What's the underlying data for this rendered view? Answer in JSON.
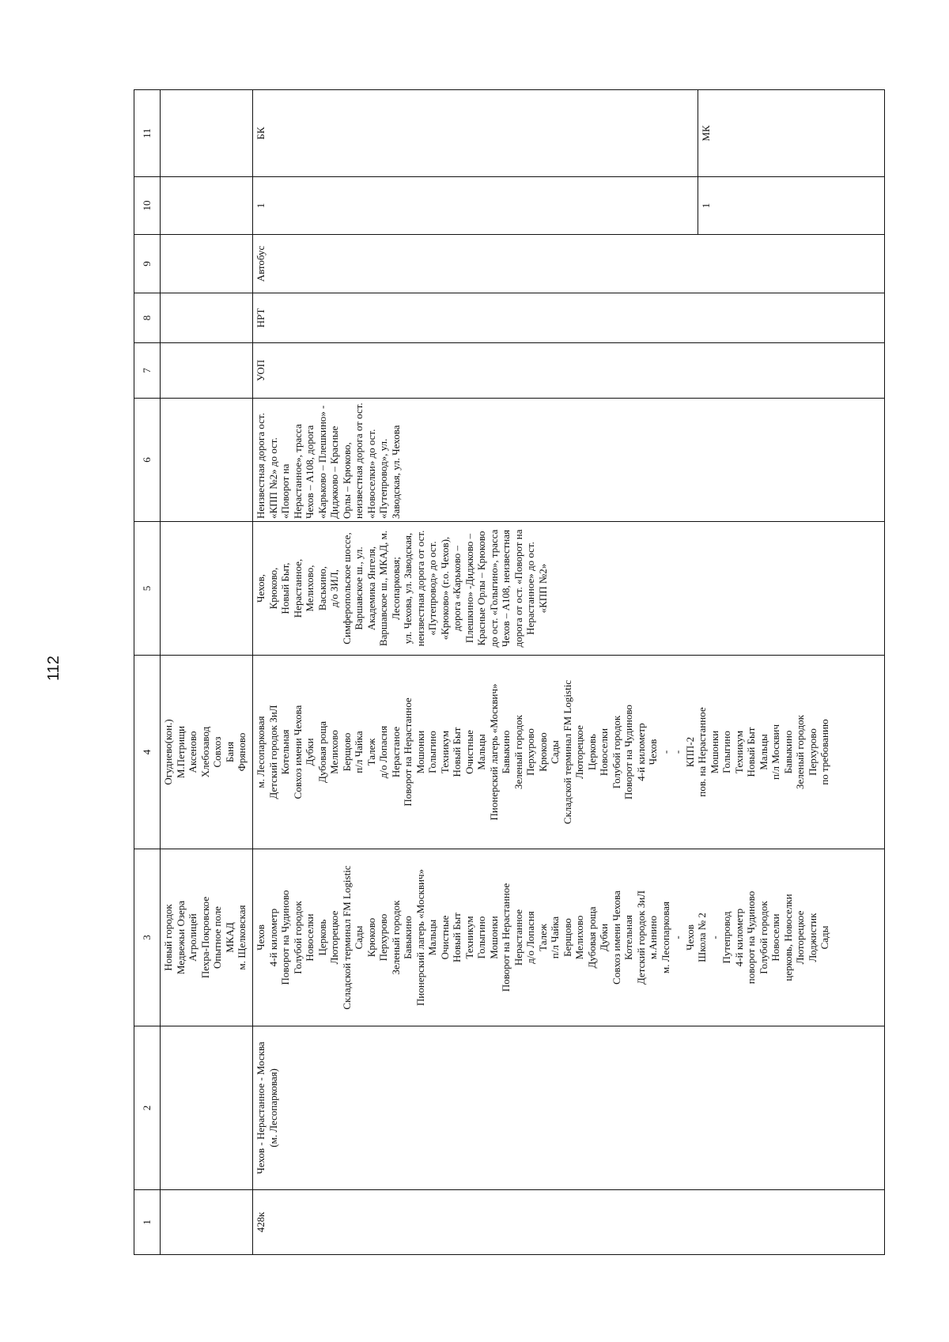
{
  "page_number": "112",
  "table": {
    "header": [
      1,
      2,
      3,
      4,
      5,
      6,
      7,
      8,
      9,
      10,
      11
    ],
    "rows": [
      {
        "cells": [
          [],
          [],
          [
            "Новый городок",
            "Медвежьи Озера",
            "Агролицей",
            "Пехра-Покровское",
            "Опытное поле",
            "МКАД",
            "м. Щелковская"
          ],
          [
            "Огуднево(кон.)",
            "М.Петрищи",
            "Аксеново",
            "Хлебозавод",
            "Совхоз",
            "Баня",
            "Фряново"
          ],
          [],
          [],
          [],
          [],
          [],
          [],
          []
        ]
      },
      {
        "cells": [
          [
            "428к"
          ],
          [
            "Чехов - Нерастанное - Москва",
            "(м. Лесопарковая)"
          ],
          [
            "Чехов",
            "4-й километр",
            "Поворот на Чудиново",
            "Голубой городок",
            "Новоселки",
            "Церковь",
            "Люторецкое",
            "Складской терминал FM Logistic",
            "Сады",
            "Крюково",
            "Перхурово",
            "Зеленый городок",
            "Бавыкино",
            "Пионерский лагерь «Москвич»",
            "Мальцы",
            "Очистные",
            "Новый Быт",
            "Техникум",
            "Голыгино",
            "Мошонки",
            "Поворот на Нерастанное",
            "Нерастанное",
            "д/о Лопасня",
            "Талеж",
            "п/л Чайка",
            "Берщово",
            "Мелихово",
            "Дубовая роща",
            "Дубки",
            "Совхоз имени Чехова",
            "Котельная",
            "Детский городок ЗиЛ",
            "м.Аннино",
            "м. Лесопарковая",
            "-",
            "Чехов",
            "Школа № 2",
            "-",
            "Путепровод",
            "4-й километр",
            "поворот на Чудиново",
            "Голубой городок",
            "Новоселки",
            "церковь, Новоселки",
            "Люторецкое",
            "Лоджистик",
            "Сады"
          ],
          [
            "м. Лесопарковая",
            "Детский городок ЗиЛ",
            "Котельная",
            "Совхоз имени Чехова",
            "Дубки",
            "Дубовая роща",
            "Мелихово",
            "Берщово",
            "п/л Чайка",
            "Талеж",
            "д/о Лопасня",
            "Нерастаное",
            "Поворот на Нерастанное",
            "Мошонки",
            "Голыгино",
            "Техникум",
            "Новый Быт",
            "Очистные",
            "Мальцы",
            "Пионерский лагерь «Москвич»",
            "Бавыкино",
            "Зеленый городок",
            "Перхурово",
            "Крюково",
            "Сады",
            "Складской терминал FM Logistic",
            "Люторецкое",
            "Церковь",
            "Новоселки",
            "Голубой городок",
            "Поворот на Чудиново",
            "4-й километр",
            "Чехов",
            "-",
            "-",
            "КПП-2",
            "пов. на Нерастанное",
            "Мошонки",
            "Голыгино",
            "Техникум",
            "Новый Быт",
            "Мальцы",
            "п/л Москвич",
            "Бавыкино",
            "Зеленый городок",
            "Перхурово",
            "по требованию"
          ],
          [
            "Чехов,",
            "Крюково,",
            "Новый Быт,",
            "Нерастанное,",
            "Мелихово,",
            "Васькино,",
            "д/о ЗИЛ,",
            "Симферопольское шоссе,",
            "Варшавское ш., ул.",
            "Академика Янгеля,",
            "Варшавское ш., МКАД, м.",
            "Лесопарковая;",
            "ул. Чехова, ул. Заводская,",
            "неизвестная дорога от ост.",
            "«Путепровод» до ост.",
            "«Крюково» (г.о. Чехов),",
            "дорога «Карьково –",
            "Плешкино» -Диджково –",
            "Красные Орлы – Крюково",
            "до ост. «Голыгино», трасса",
            "Чехов – А108, неизвестная",
            "дорога от ост. «Поворот на",
            "Нерастанное» до ост.",
            "«КПП №2»"
          ],
          [
            "Неизвестная дорога ост.",
            "«КПП №2» до ост.",
            "«Поворот на",
            "Нерастанное», трасса",
            "Чехов – А108, дорога",
            "«Карьково – Плешкино» -",
            "Диджково – Красные",
            "Орлы – Крюково,",
            "неизвестная дорога от ост.",
            "«Новоселки» до ост.",
            "«Путепровод», ул.",
            "Заводская, ул. Чехова"
          ],
          [
            "УОП"
          ],
          [
            "НРТ"
          ],
          [
            "Автобус"
          ]
        ],
        "subrows": [
          {
            "cells": [
              [
                "1"
              ],
              [
                "БК"
              ]
            ]
          },
          {
            "cells": [
              [
                "1"
              ],
              [
                "МК"
              ]
            ]
          }
        ]
      }
    ]
  }
}
